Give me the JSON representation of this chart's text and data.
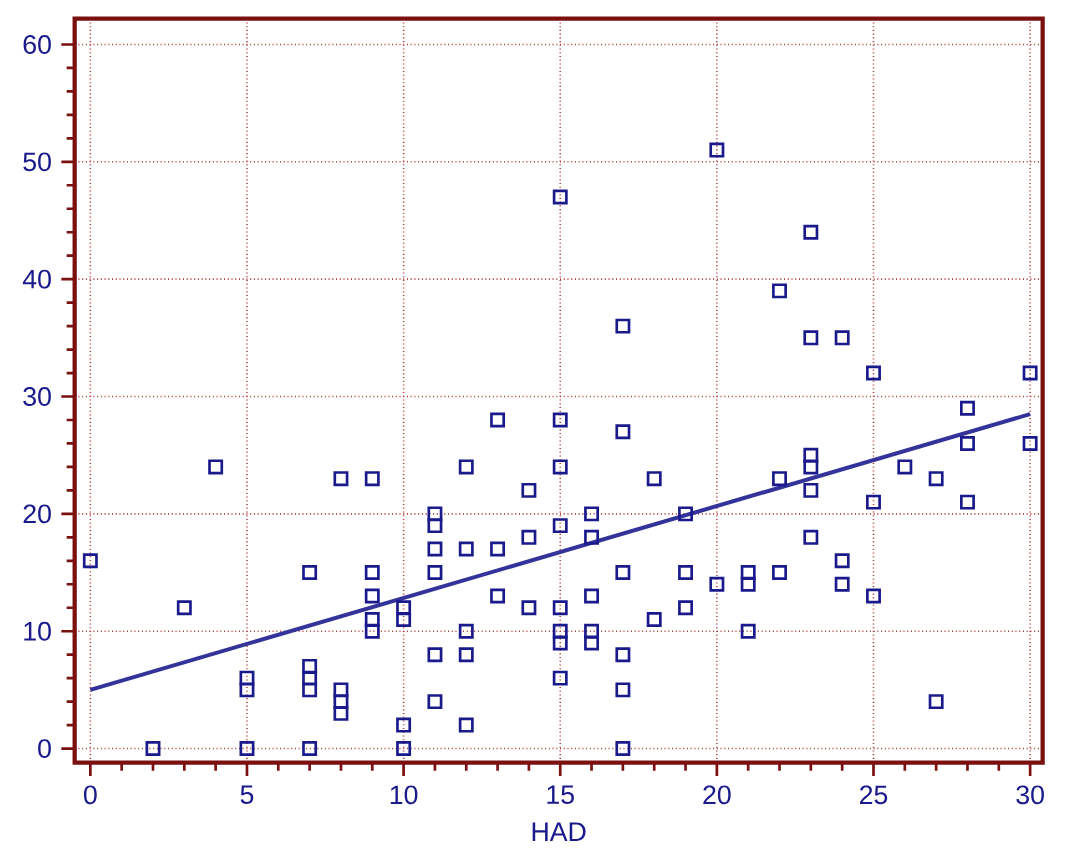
{
  "chart_data": {
    "type": "scatter",
    "xlabel": "HAD",
    "xlim": [
      -0.5,
      30.4
    ],
    "ylim": [
      -1.2,
      62.2
    ],
    "xticks": [
      0,
      5,
      10,
      15,
      20,
      25,
      30
    ],
    "yticks": [
      0,
      10,
      20,
      30,
      40,
      50,
      60
    ],
    "grid": true,
    "series": [
      {
        "color": "#1a1a8c",
        "marker": "square",
        "x": [
          0,
          2,
          3,
          4,
          5,
          5,
          5,
          7,
          7,
          7,
          7,
          7,
          8,
          8,
          8,
          8,
          9,
          9,
          9,
          9,
          9,
          10,
          10,
          10,
          10,
          11,
          11,
          11,
          11,
          11,
          11,
          12,
          12,
          12,
          12,
          12,
          13,
          13,
          13,
          14,
          14,
          14,
          15,
          15,
          15,
          15,
          15,
          15,
          15,
          15,
          16,
          16,
          16,
          16,
          16,
          17,
          17,
          17,
          17,
          17,
          17,
          18,
          18,
          19,
          19,
          19,
          20,
          20,
          21,
          21,
          21,
          22,
          22,
          22,
          23,
          23,
          23,
          23,
          23,
          23,
          24,
          24,
          24,
          25,
          25,
          25,
          26,
          27,
          27,
          28,
          28,
          28,
          30,
          30
        ],
        "values": [
          16,
          0,
          12,
          24,
          0,
          5,
          6,
          0,
          5,
          6,
          7,
          15,
          3,
          4,
          5,
          23,
          10,
          11,
          13,
          15,
          23,
          0,
          2,
          11,
          12,
          4,
          8,
          15,
          17,
          19,
          20,
          2,
          8,
          10,
          17,
          24,
          13,
          17,
          28,
          12,
          18,
          22,
          6,
          9,
          10,
          12,
          19,
          24,
          28,
          47,
          9,
          10,
          13,
          18,
          20,
          0,
          5,
          8,
          15,
          27,
          36,
          11,
          23,
          12,
          15,
          20,
          14,
          51,
          10,
          14,
          15,
          15,
          23,
          39,
          18,
          22,
          24,
          25,
          35,
          44,
          14,
          16,
          35,
          13,
          21,
          32,
          24,
          4,
          23,
          21,
          26,
          29,
          26,
          32
        ]
      },
      {
        "type": "line",
        "color": "#333399",
        "line_style": "solid",
        "x": [
          0,
          30
        ],
        "values": [
          5,
          28.5
        ]
      }
    ]
  }
}
